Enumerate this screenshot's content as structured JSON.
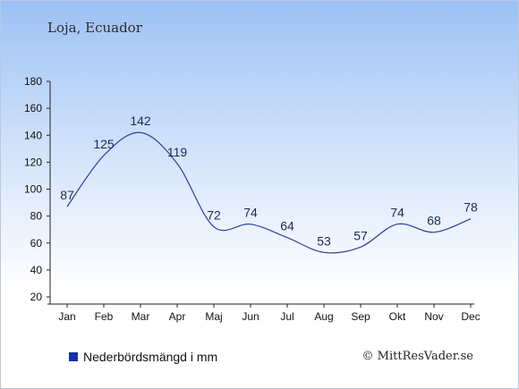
{
  "location": "Loja, Ecuador",
  "legend_label": "Nederbördsmängd i mm",
  "copyright": "© MittResVader.se",
  "colors": {
    "line": "#2e3fa3",
    "legend_swatch": "#1a2fa8"
  },
  "chart_data": {
    "type": "line",
    "categories": [
      "Jan",
      "Feb",
      "Mar",
      "Apr",
      "Maj",
      "Jun",
      "Jul",
      "Aug",
      "Sep",
      "Okt",
      "Nov",
      "Dec"
    ],
    "series": [
      {
        "name": "Nederbördsmängd i mm",
        "values": [
          87,
          125,
          142,
          119,
          72,
          74,
          64,
          53,
          57,
          74,
          68,
          78
        ]
      }
    ],
    "ylim": [
      20,
      180
    ],
    "yticks": [
      20,
      40,
      60,
      80,
      100,
      120,
      140,
      160,
      180
    ],
    "grid": false,
    "legend_position": "bottom-left"
  }
}
